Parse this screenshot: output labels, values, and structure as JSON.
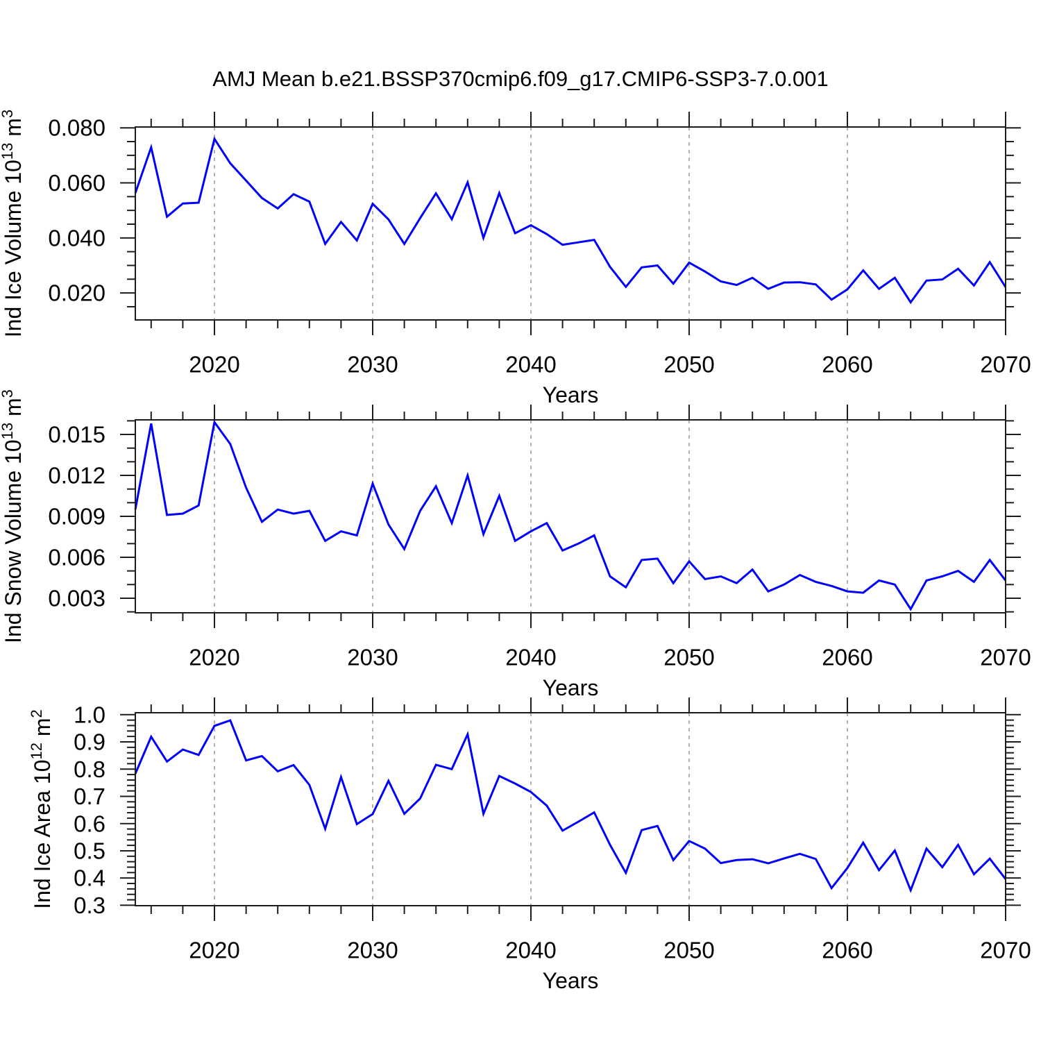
{
  "title": "AMJ Mean b.e21.BSSP370cmip6.f09_g17.CMIP6-SSP3-7.0.001",
  "colors": {
    "line": "#0000ff",
    "grid": "#a9a9a9",
    "frame": "#1c1c1c",
    "text": "#000000",
    "background": "#ffffff"
  },
  "chart_data": [
    {
      "type": "line",
      "id": "ice-volume",
      "xlabel": "Years",
      "ylabel": "Ind Ice Volume 10^13 m^3",
      "ylabel_parts": [
        {
          "text": "Ind Ice Volume 10",
          "sup": false
        },
        {
          "text": "13",
          "sup": true
        },
        {
          "text": " m",
          "sup": false
        },
        {
          "text": "3",
          "sup": true
        }
      ],
      "x_start": 2015,
      "x_end": 2070,
      "x_step": 1,
      "values": [
        0.0563,
        0.0729,
        0.0477,
        0.0525,
        0.0528,
        0.076,
        0.0671,
        0.0608,
        0.0545,
        0.0507,
        0.0559,
        0.0532,
        0.0378,
        0.0458,
        0.0391,
        0.0524,
        0.0467,
        0.0378,
        0.0472,
        0.0562,
        0.0468,
        0.0602,
        0.04,
        0.0563,
        0.0417,
        0.0446,
        0.0414,
        0.0375,
        0.0384,
        0.0393,
        0.0295,
        0.0222,
        0.0293,
        0.03,
        0.0234,
        0.031,
        0.0278,
        0.0242,
        0.0229,
        0.0255,
        0.0215,
        0.0238,
        0.0239,
        0.0231,
        0.0176,
        0.0213,
        0.0282,
        0.0215,
        0.0255,
        0.0166,
        0.0245,
        0.0249,
        0.0288,
        0.0227,
        0.0312,
        0.0221
      ],
      "xlim": [
        2015,
        2070
      ],
      "ylim": [
        0.0102,
        0.0803
      ],
      "yticks": [
        0.02,
        0.04,
        0.06,
        0.08
      ],
      "ytick_labels": [
        "0.020",
        "0.040",
        "0.060",
        "0.080"
      ],
      "y_minor_step": 0.005,
      "xticks": [
        2020,
        2030,
        2040,
        2050,
        2060,
        2070
      ],
      "xtick_labels": [
        "2020",
        "2030",
        "2040",
        "2050",
        "2060",
        "2070"
      ],
      "x_minor_step": 2,
      "grid_x": [
        2020,
        2030,
        2040,
        2050,
        2060
      ],
      "legend": "none"
    },
    {
      "type": "line",
      "id": "snow-volume",
      "xlabel": "Years",
      "ylabel": "Ind Snow Volume 10^13 m^3",
      "ylabel_parts": [
        {
          "text": "Ind Snow Volume 10",
          "sup": false
        },
        {
          "text": "13",
          "sup": true
        },
        {
          "text": " m",
          "sup": false
        },
        {
          "text": "3",
          "sup": true
        }
      ],
      "x_start": 2015,
      "x_end": 2070,
      "x_step": 1,
      "values": [
        0.0095,
        0.0158,
        0.0091,
        0.0092,
        0.0098,
        0.0159,
        0.0143,
        0.0111,
        0.0086,
        0.0095,
        0.0092,
        0.0094,
        0.0072,
        0.0079,
        0.0076,
        0.0114,
        0.0084,
        0.0066,
        0.0094,
        0.0112,
        0.0085,
        0.012,
        0.0077,
        0.0105,
        0.0072,
        0.0079,
        0.0085,
        0.0065,
        0.007,
        0.0076,
        0.0046,
        0.0038,
        0.0058,
        0.0059,
        0.0041,
        0.0057,
        0.0044,
        0.0046,
        0.0041,
        0.0051,
        0.0035,
        0.004,
        0.0047,
        0.0042,
        0.0039,
        0.0035,
        0.0034,
        0.0043,
        0.004,
        0.0022,
        0.0043,
        0.0046,
        0.005,
        0.0042,
        0.0058,
        0.0043
      ],
      "xlim": [
        2015,
        2070
      ],
      "ylim": [
        0.00193,
        0.01607
      ],
      "yticks": [
        0.003,
        0.006,
        0.009,
        0.012,
        0.015
      ],
      "ytick_labels": [
        "0.003",
        "0.006",
        "0.009",
        "0.012",
        "0.015"
      ],
      "y_minor_step": 0.001,
      "xticks": [
        2020,
        2030,
        2040,
        2050,
        2060,
        2070
      ],
      "xtick_labels": [
        "2020",
        "2030",
        "2040",
        "2050",
        "2060",
        "2070"
      ],
      "x_minor_step": 2,
      "grid_x": [
        2020,
        2030,
        2040,
        2050,
        2060
      ],
      "legend": "none"
    },
    {
      "type": "line",
      "id": "ice-area",
      "xlabel": "Years",
      "ylabel": "Ind Ice Area 10^12 m^2",
      "ylabel_parts": [
        {
          "text": "Ind Ice Area 10",
          "sup": false
        },
        {
          "text": "12",
          "sup": true
        },
        {
          "text": " m",
          "sup": false
        },
        {
          "text": "2",
          "sup": true
        }
      ],
      "x_start": 2015,
      "x_end": 2070,
      "x_step": 1,
      "values": [
        0.783,
        0.919,
        0.828,
        0.872,
        0.852,
        0.959,
        0.979,
        0.832,
        0.848,
        0.792,
        0.815,
        0.742,
        0.581,
        0.771,
        0.598,
        0.635,
        0.757,
        0.636,
        0.692,
        0.816,
        0.8,
        0.928,
        0.636,
        0.775,
        0.747,
        0.716,
        0.666,
        0.574,
        0.607,
        0.641,
        0.522,
        0.419,
        0.576,
        0.591,
        0.466,
        0.536,
        0.508,
        0.455,
        0.466,
        0.469,
        0.454,
        0.472,
        0.489,
        0.47,
        0.363,
        0.437,
        0.53,
        0.429,
        0.501,
        0.355,
        0.508,
        0.44,
        0.522,
        0.414,
        0.471,
        0.396
      ],
      "xlim": [
        2015,
        2070
      ],
      "ylim": [
        0.2985,
        1.0071
      ],
      "yticks": [
        0.3,
        0.4,
        0.5,
        0.6,
        0.7,
        0.8,
        0.9,
        1.0
      ],
      "ytick_labels": [
        "0.3",
        "0.4",
        "0.5",
        "0.6",
        "0.7",
        "0.8",
        "0.9",
        "1.0"
      ],
      "y_minor_step": 0.02,
      "xticks": [
        2020,
        2030,
        2040,
        2050,
        2060,
        2070
      ],
      "xtick_labels": [
        "2020",
        "2030",
        "2040",
        "2050",
        "2060",
        "2070"
      ],
      "x_minor_step": 2,
      "grid_x": [
        2020,
        2030,
        2040,
        2050,
        2060
      ],
      "legend": "none"
    }
  ]
}
